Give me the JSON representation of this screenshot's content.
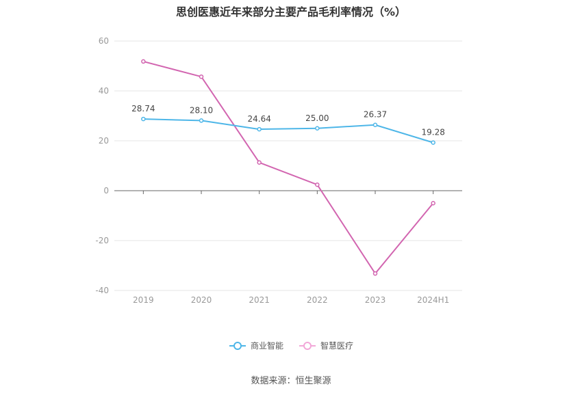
{
  "chart_data": {
    "type": "line",
    "title": "思创医惠近年来部分主要产品毛利率情况（%）",
    "categories": [
      "2019",
      "2020",
      "2021",
      "2022",
      "2023",
      "2024H1"
    ],
    "ylim": [
      -40,
      60
    ],
    "yticks": [
      -40,
      -20,
      0,
      20,
      40,
      60
    ],
    "grid": true,
    "legend_position": "bottom",
    "series": [
      {
        "name": "商业智能",
        "color": "#4db6e8",
        "values": [
          28.74,
          28.1,
          24.64,
          25.0,
          26.37,
          19.28
        ],
        "labels": [
          "28.74",
          "28.10",
          "24.64",
          "25.00",
          "26.37",
          "19.28"
        ]
      },
      {
        "name": "智慧医疗",
        "color": "#d265b0",
        "values": [
          51.8,
          45.7,
          11.3,
          2.4,
          -33.2,
          -5.0
        ]
      }
    ]
  },
  "source": "数据来源：恒生聚源"
}
